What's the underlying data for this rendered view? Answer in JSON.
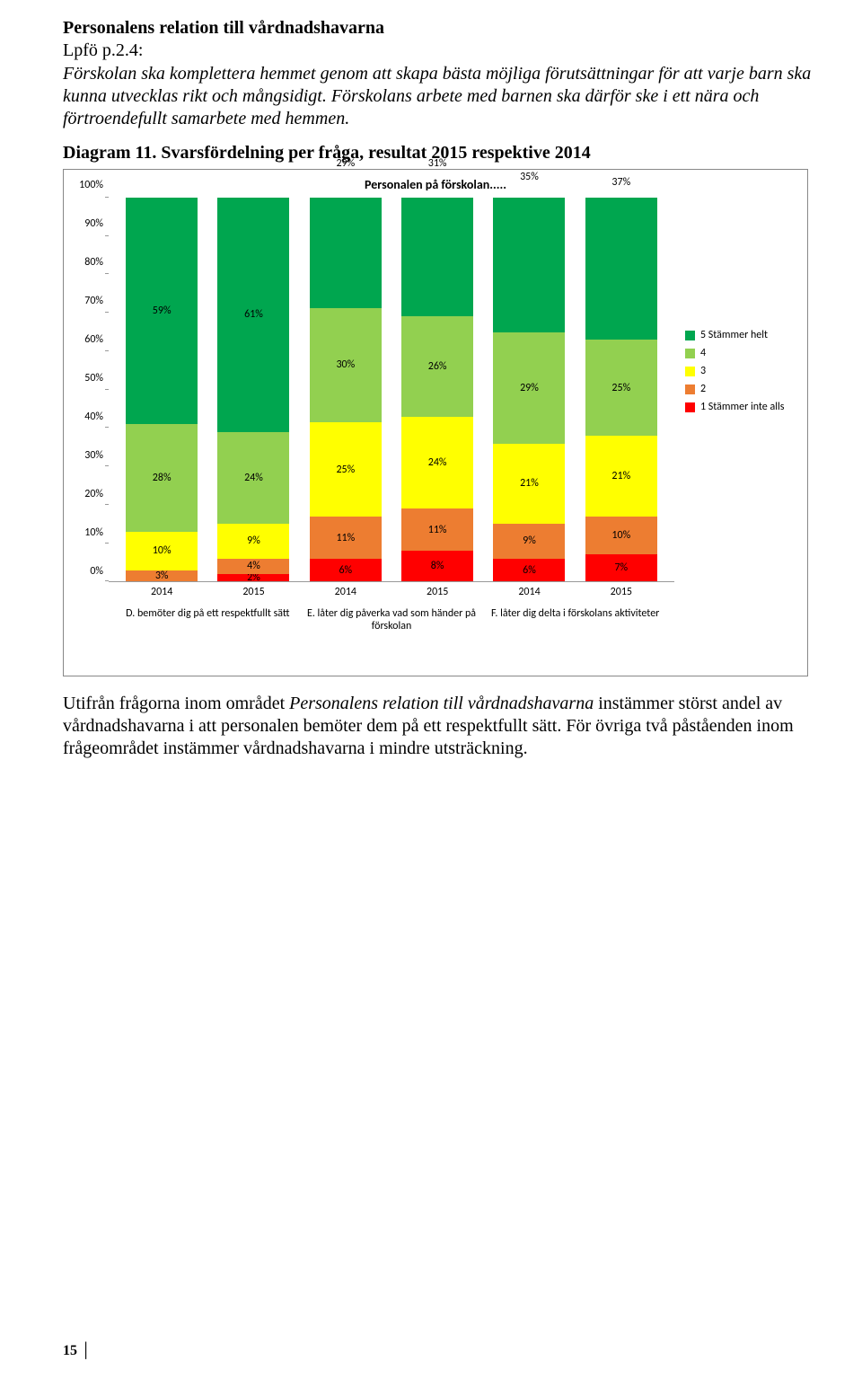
{
  "heading": "Personalens relation till vårdnadshavarna",
  "subhead": "Lpfö p.2.4:",
  "intro": "Förskolan ska komplettera hemmet genom att skapa bästa möjliga förutsättningar för att varje barn ska kunna utvecklas rikt och mångsidigt. Förskolans arbete med barnen ska därför ske i ett nära och förtroendefullt samarbete med hemmen.",
  "diagram_title": "Diagram 11. Svarsfördelning per fråga, resultat 2015 respektive 2014",
  "chart": {
    "type": "stacked-bar",
    "title": "Personalen på förskolan.....",
    "y_ticks": [
      "0%",
      "10%",
      "20%",
      "30%",
      "40%",
      "50%",
      "60%",
      "70%",
      "80%",
      "90%",
      "100%"
    ],
    "colors": {
      "s5": "#00a64f",
      "s4": "#92d050",
      "s3": "#ffff00",
      "s2": "#ed7d31",
      "s1": "#ff0000"
    },
    "legend": [
      {
        "key": "s5",
        "label": "5 Stämmer helt"
      },
      {
        "key": "s4",
        "label": "4"
      },
      {
        "key": "s3",
        "label": "3"
      },
      {
        "key": "s2",
        "label": "2"
      },
      {
        "key": "s1",
        "label": "1 Stämmer inte alls"
      }
    ],
    "groups": [
      {
        "label": "D. bemöter dig på ett respektfullt sätt",
        "years": [
          "2014",
          "2015"
        ]
      },
      {
        "label": "E. låter dig påverka vad som händer på förskolan",
        "years": [
          "2014",
          "2015"
        ]
      },
      {
        "label": "F. låter dig delta i förskolans aktiviteter",
        "years": [
          "2014",
          "2015"
        ]
      }
    ],
    "bars": [
      {
        "segments": [
          {
            "k": "s1",
            "v": 0,
            "t": ""
          },
          {
            "k": "s2",
            "v": 3,
            "t": "3%"
          },
          {
            "k": "s3",
            "v": 10,
            "t": "10%"
          },
          {
            "k": "s4",
            "v": 28,
            "t": "28%"
          },
          {
            "k": "s5",
            "v": 59,
            "t": "59%"
          }
        ]
      },
      {
        "segments": [
          {
            "k": "s1",
            "v": 2,
            "t": "2%"
          },
          {
            "k": "s2",
            "v": 4,
            "t": "4%"
          },
          {
            "k": "s3",
            "v": 9,
            "t": "9%"
          },
          {
            "k": "s4",
            "v": 24,
            "t": "24%"
          },
          {
            "k": "s5",
            "v": 61,
            "t": "61%"
          }
        ]
      },
      {
        "segments": [
          {
            "k": "s1",
            "v": 6,
            "t": "6%"
          },
          {
            "k": "s2",
            "v": 11,
            "t": "11%"
          },
          {
            "k": "s3",
            "v": 25,
            "t": "25%"
          },
          {
            "k": "s4",
            "v": 30,
            "t": "30%"
          },
          {
            "k": "s5",
            "v": 29,
            "t": "29%"
          }
        ],
        "label_offsets": {
          "s5": "-45"
        }
      },
      {
        "segments": [
          {
            "k": "s1",
            "v": 8,
            "t": "8%"
          },
          {
            "k": "s2",
            "v": 11,
            "t": "11%"
          },
          {
            "k": "s3",
            "v": 24,
            "t": "24%"
          },
          {
            "k": "s4",
            "v": 26,
            "t": "26%"
          },
          {
            "k": "s5",
            "v": 31,
            "t": "31%"
          }
        ],
        "label_offsets": {
          "s5": "-45"
        }
      },
      {
        "segments": [
          {
            "k": "s1",
            "v": 6,
            "t": "6%"
          },
          {
            "k": "s2",
            "v": 9,
            "t": "9%"
          },
          {
            "k": "s3",
            "v": 21,
            "t": "21%"
          },
          {
            "k": "s4",
            "v": 29,
            "t": "29%"
          },
          {
            "k": "s5",
            "v": 35,
            "t": "35%"
          }
        ],
        "label_offsets": {
          "s5": "-30"
        }
      },
      {
        "segments": [
          {
            "k": "s1",
            "v": 7,
            "t": "7%"
          },
          {
            "k": "s2",
            "v": 10,
            "t": "10%"
          },
          {
            "k": "s3",
            "v": 21,
            "t": "21%"
          },
          {
            "k": "s4",
            "v": 25,
            "t": "25%"
          },
          {
            "k": "s5",
            "v": 37,
            "t": "37%"
          }
        ],
        "label_offsets": {
          "s5": "-24"
        }
      }
    ]
  },
  "para2_pre": "Utifrån frågorna inom området ",
  "para2_ital": "Personalens relation till vårdnadshavarna",
  "para2_post": " instämmer störst andel av vårdnadshavarna i att personalen bemöter dem på ett respektfullt sätt. För övriga två påståenden inom frågeområdet instämmer vårdnadshavarna i mindre utsträckning.",
  "page_number": "15"
}
